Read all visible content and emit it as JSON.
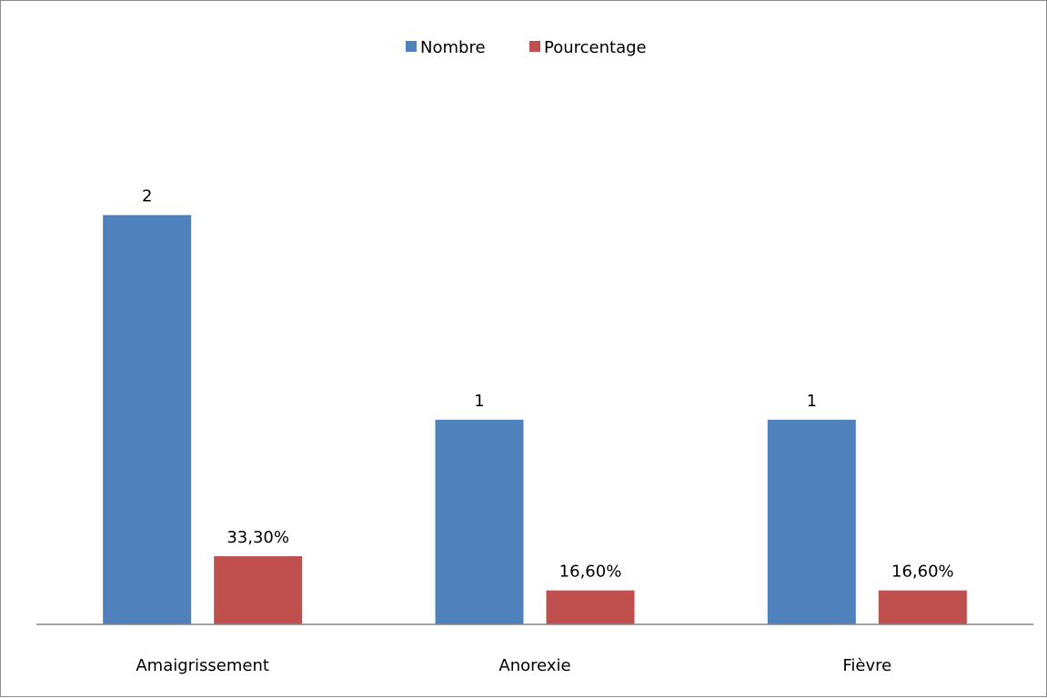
{
  "chart_data": {
    "type": "bar",
    "categories": [
      "Amaigrissement",
      "Anorexie",
      "Fièvre"
    ],
    "series": [
      {
        "name": "Nombre",
        "values": [
          2,
          1,
          1
        ],
        "labels": [
          "2",
          "1",
          "1"
        ],
        "color": "#4F81BD"
      },
      {
        "name": "Pourcentage",
        "values": [
          0.333,
          0.166,
          0.166
        ],
        "labels": [
          "33,30%",
          "16,60%",
          "16,60%"
        ],
        "color": "#C0504D"
      }
    ],
    "title": "",
    "xlabel": "",
    "ylabel": "",
    "ylim": [
      0,
      2.82
    ],
    "grid": false,
    "legend": "top-center"
  }
}
